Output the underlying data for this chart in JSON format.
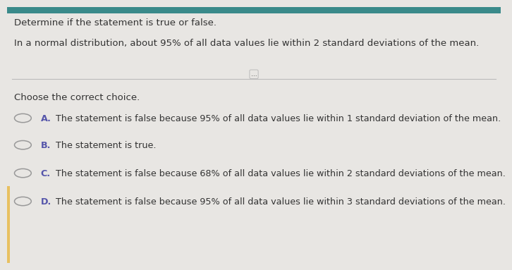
{
  "background_color": "#e8e6e3",
  "top_bar_color": "#3a8a8a",
  "top_bar_height": 0.025,
  "title_line1": "Determine if the statement is true or false.",
  "title_line2": "In a normal distribution, about 95% of all data values lie within 2 standard deviations of the mean.",
  "divider_label": "...",
  "section_header": "Choose the correct choice.",
  "options": [
    {
      "letter": "A.",
      "text": "The statement is false because 95% of all data values lie within 1 standard deviation of the mean."
    },
    {
      "letter": "B.",
      "text": "The statement is true."
    },
    {
      "letter": "C.",
      "text": "The statement is false because 68% of all data values lie within 2 standard deviations of the mean."
    },
    {
      "letter": "D.",
      "text": "The statement is false because 95% of all data values lie within 3 standard deviations of the mean."
    }
  ],
  "text_color": "#333333",
  "circle_color": "#999999",
  "option_letter_color": "#5555aa",
  "font_size_title": 9.5,
  "font_size_header": 9.5,
  "font_size_option": 9.2,
  "divider_color": "#bbbbbb",
  "left_bar_color": "#e8c060",
  "left_bar_width": 0.006
}
